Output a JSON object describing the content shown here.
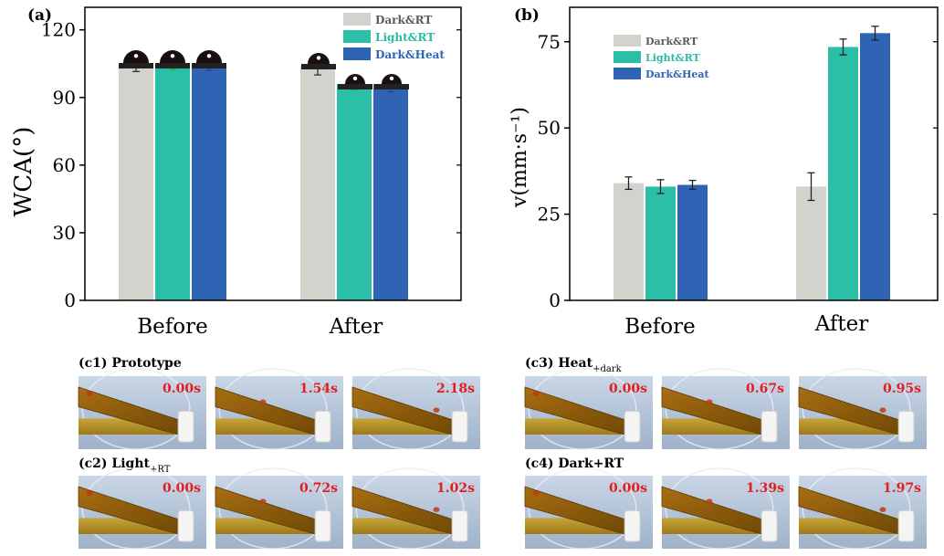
{
  "colors": {
    "dark_rt": "#d3d2cd",
    "light_rt": "#2bbfa8",
    "dark_heat": "#2f64b4",
    "stamp": "#e02020",
    "legend_text_dark": "#5a5a5a",
    "legend_text_light": "#29b9a2",
    "legend_text_heat": "#2f64b4"
  },
  "chart_data": [
    {
      "type": "bar",
      "panel_label": "(a)",
      "ylabel": "WCA(°)",
      "xlabel": "",
      "categories": [
        "Before",
        "After"
      ],
      "ylim": [
        0,
        130
      ],
      "yticks": [
        "0",
        "30",
        "60",
        "90",
        "120"
      ],
      "legend": {
        "position": "top-right",
        "entries": [
          "Dark&RT",
          "Light&RT",
          "Dark&Heat"
        ]
      },
      "series": [
        {
          "name": "Dark&RT",
          "values": [
            105,
            104
          ],
          "errors": [
            3.5,
            4
          ]
        },
        {
          "name": "Light&RT",
          "values": [
            105,
            96
          ],
          "errors": [
            2.5,
            2.5
          ]
        },
        {
          "name": "Dark&Heat",
          "values": [
            105,
            96
          ],
          "errors": [
            3,
            3.5
          ]
        }
      ]
    },
    {
      "type": "bar",
      "panel_label": "(b)",
      "ylabel": "v(mm·s⁻¹)",
      "xlabel": "",
      "categories": [
        "Before",
        "After"
      ],
      "ylim": [
        0,
        85
      ],
      "yticks": [
        "0",
        "25",
        "50",
        "75"
      ],
      "legend": {
        "position": "top-left",
        "entries": [
          "Dark&RT",
          "Light&RT",
          "Dark&Heat"
        ]
      },
      "series": [
        {
          "name": "Dark&RT",
          "values": [
            34,
            33
          ],
          "errors": [
            1.8,
            4
          ]
        },
        {
          "name": "Light&RT",
          "values": [
            33,
            73.5
          ],
          "errors": [
            2,
            2.3
          ]
        },
        {
          "name": "Dark&Heat",
          "values": [
            33.5,
            77.5
          ],
          "errors": [
            1.3,
            2
          ]
        }
      ]
    }
  ],
  "photos": {
    "panels": [
      {
        "label": "(c1) Prototype",
        "times": [
          "0.00s",
          "1.54s",
          "2.18s"
        ]
      },
      {
        "label": "(c2) Light",
        "label_sub": "+RT",
        "times": [
          "0.00s",
          "0.72s",
          "1.02s"
        ]
      },
      {
        "label": "(c3) Heat",
        "label_sub": "+dark",
        "times": [
          "0.00s",
          "0.67s",
          "0.95s"
        ]
      },
      {
        "label": "(c4) Dark+RT",
        "times": [
          "0.00s",
          "1.39s",
          "1.97s"
        ]
      }
    ]
  }
}
